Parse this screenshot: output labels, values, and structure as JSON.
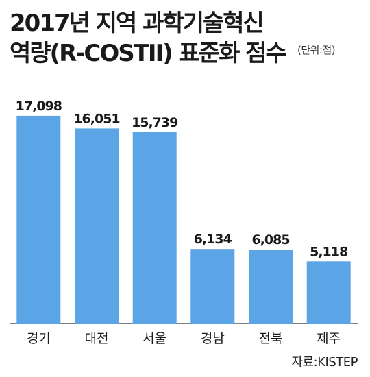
{
  "header": {
    "title_line1": "2017년 지역 과학기술혁신",
    "title_line2": "역량(R-COSTII) 표준화 점수",
    "unit": "(단위:점)"
  },
  "source": "자료:KISTEP",
  "colors": {
    "bar": "#5ba5e6",
    "axis": "#555555",
    "text": "#1a1a1a"
  },
  "chart_data": {
    "type": "bar",
    "title": "2017년 지역 과학기술혁신 역량(R-COSTII) 표준화 점수",
    "unit": "(단위:점)",
    "categories": [
      "경기",
      "대전",
      "서울",
      "경남",
      "전북",
      "제주"
    ],
    "values": [
      17.098,
      16.051,
      15.739,
      6.134,
      6.085,
      5.118
    ],
    "value_labels": [
      "17,098",
      "16,051",
      "15,739",
      "6,134",
      "6,085",
      "5,118"
    ],
    "ylim": [
      0,
      18.5
    ],
    "grid": false,
    "legend": "none"
  }
}
